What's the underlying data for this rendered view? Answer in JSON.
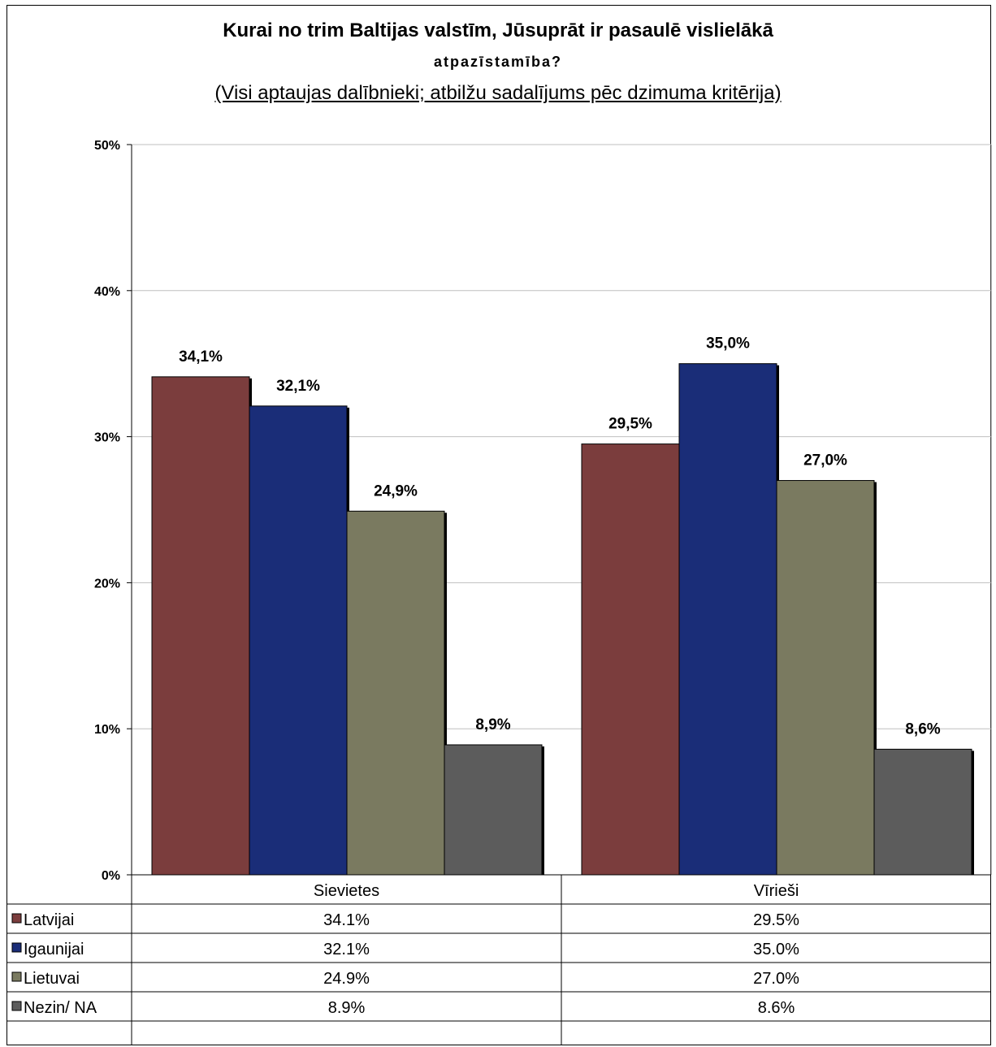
{
  "chart_data": {
    "type": "bar",
    "title": "Kurai no trim Baltijas valstīm, Jūsuprāt ir pasaulē vislielākā",
    "title_line2": "atpazīstamība?",
    "subtitle": "(Visi aptaujas dalībnieki; atbilžu sadalījums pēc dzimuma kritērija)",
    "categories": [
      "Sievietes",
      "Vīrieši"
    ],
    "series": [
      {
        "name": "Latvijai",
        "values": [
          34.1,
          29.5
        ],
        "value_labels": [
          "34,1%",
          "29,5%"
        ],
        "table_labels": [
          "34.1%",
          "29.5%"
        ],
        "color": "#7B3D3D"
      },
      {
        "name": "Igaunijai",
        "values": [
          32.1,
          35.0
        ],
        "value_labels": [
          "32,1%",
          "35,0%"
        ],
        "table_labels": [
          "32.1%",
          "35.0%"
        ],
        "color": "#1A2D78"
      },
      {
        "name": "Lietuvai",
        "values": [
          24.9,
          27.0
        ],
        "value_labels": [
          "24,9%",
          "27,0%"
        ],
        "table_labels": [
          "24.9%",
          "27.0%"
        ],
        "color": "#7A7A60"
      },
      {
        "name": "Nezin/ NA",
        "values": [
          8.9,
          8.6
        ],
        "value_labels": [
          "8,9%",
          "8,6%"
        ],
        "table_labels": [
          "8.9%",
          "8.6%"
        ],
        "color": "#5C5C5C"
      }
    ],
    "yticks": [
      "0%",
      "10%",
      "20%",
      "30%",
      "40%",
      "50%"
    ],
    "ylim": [
      0,
      50
    ],
    "grid": true,
    "legend": "data table below chart"
  }
}
